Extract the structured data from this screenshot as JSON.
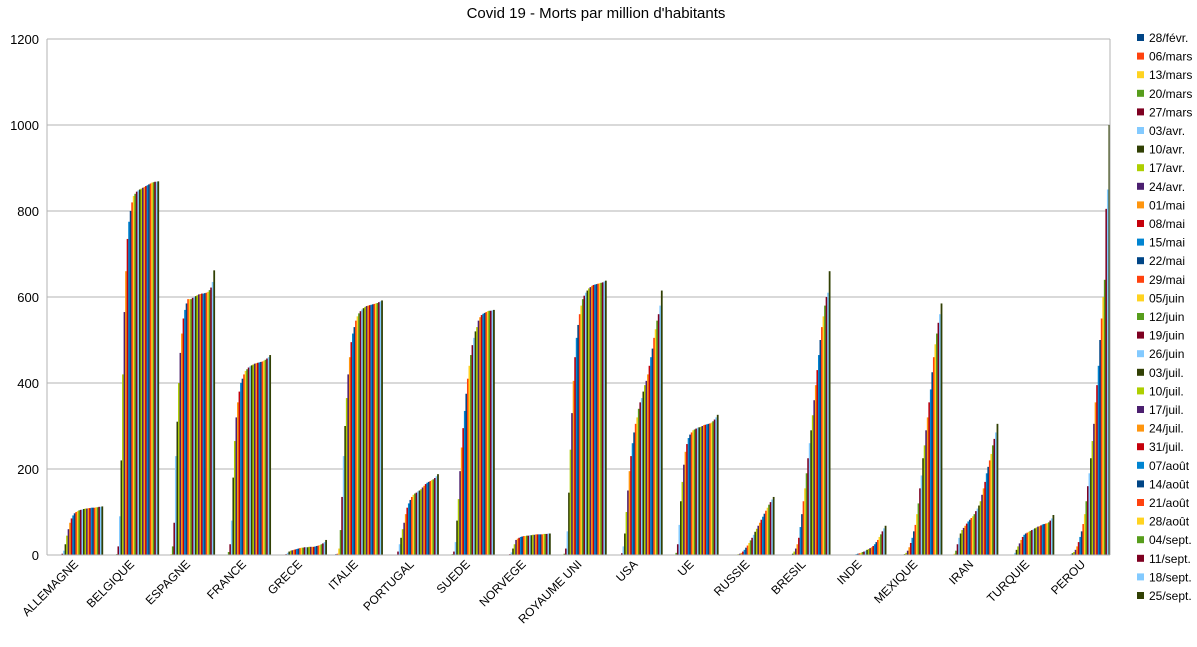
{
  "chart_data": {
    "type": "bar",
    "title": "Covid 19 - Morts par million d'habitants",
    "xlabel": "",
    "ylabel": "",
    "ylim": [
      0,
      1200
    ],
    "yticks": [
      0,
      200,
      400,
      600,
      800,
      1000,
      1200
    ],
    "grid": true,
    "legend_position": "right",
    "categories": [
      "ALLEMAGNE",
      "BELGIQUE",
      "ESPAGNE",
      "FRANCE",
      "GRECE",
      "ITALIE",
      "PORTUGAL",
      "SUEDE",
      "NORVEGE",
      "ROYAUME UNI",
      "USA",
      "UE",
      "RUSSIE",
      "BRESIL",
      "INDE",
      "MEXIQUE",
      "IRAN",
      "TURQUIE",
      "PEROU"
    ],
    "series": [
      {
        "name": "28/févr.",
        "color": "#004586",
        "values": [
          0,
          0,
          0,
          0,
          0,
          2,
          0,
          0,
          0,
          0,
          0,
          0,
          0,
          0,
          0,
          0,
          1,
          0,
          0
        ]
      },
      {
        "name": "06/mars",
        "color": "#ff420e",
        "values": [
          0,
          0,
          0,
          0,
          0,
          3,
          0,
          0,
          0,
          0,
          0,
          0,
          0,
          0,
          0,
          0,
          1,
          0,
          0
        ]
      },
      {
        "name": "13/mars",
        "color": "#ffd320",
        "values": [
          0,
          1,
          2,
          1,
          0,
          15,
          0,
          0,
          0,
          0,
          0,
          0,
          0,
          0,
          0,
          0,
          3,
          0,
          0
        ]
      },
      {
        "name": "20/mars",
        "color": "#579d1c",
        "values": [
          1,
          2,
          20,
          7,
          1,
          58,
          1,
          2,
          1,
          3,
          1,
          5,
          0,
          0,
          0,
          0,
          10,
          0,
          0
        ]
      },
      {
        "name": "27/mars",
        "color": "#7e0021",
        "values": [
          3,
          20,
          75,
          25,
          2,
          135,
          8,
          8,
          2,
          15,
          4,
          25,
          0,
          0,
          0,
          0,
          25,
          1,
          1
        ]
      },
      {
        "name": "03/avr.",
        "color": "#83caff",
        "values": [
          10,
          90,
          230,
          80,
          5,
          230,
          25,
          30,
          6,
          55,
          20,
          70,
          0,
          1,
          0,
          1,
          40,
          5,
          2
        ]
      },
      {
        "name": "10/avr.",
        "color": "#314004",
        "values": [
          25,
          220,
          310,
          180,
          8,
          300,
          40,
          80,
          15,
          145,
          50,
          125,
          0,
          3,
          0,
          2,
          50,
          12,
          4
        ]
      },
      {
        "name": "17/avr.",
        "color": "#aecf00",
        "values": [
          45,
          420,
          400,
          265,
          10,
          365,
          60,
          130,
          25,
          245,
          100,
          170,
          2,
          8,
          0,
          5,
          58,
          20,
          7
        ]
      },
      {
        "name": "24/avr.",
        "color": "#4b1f6f",
        "values": [
          60,
          565,
          470,
          320,
          11,
          420,
          75,
          195,
          35,
          330,
          150,
          210,
          3,
          15,
          0,
          10,
          63,
          27,
          12
        ]
      },
      {
        "name": "01/mai",
        "color": "#ff950e",
        "values": [
          75,
          660,
          515,
          355,
          12,
          460,
          95,
          250,
          38,
          405,
          195,
          240,
          5,
          25,
          1,
          18,
          68,
          35,
          20
        ]
      },
      {
        "name": "08/mai",
        "color": "#c5000b",
        "values": [
          85,
          735,
          550,
          380,
          13,
          495,
          110,
          295,
          40,
          460,
          230,
          258,
          8,
          40,
          1,
          28,
          73,
          42,
          30
        ]
      },
      {
        "name": "15/mai",
        "color": "#0084d1",
        "values": [
          92,
          775,
          570,
          400,
          14,
          515,
          120,
          335,
          42,
          505,
          260,
          272,
          12,
          65,
          2,
          40,
          78,
          47,
          42
        ]
      },
      {
        "name": "22/mai",
        "color": "#004586",
        "values": [
          97,
          800,
          585,
          410,
          15,
          530,
          128,
          375,
          43,
          535,
          285,
          280,
          17,
          95,
          3,
          55,
          82,
          50,
          55
        ]
      },
      {
        "name": "29/mai",
        "color": "#ff420e",
        "values": [
          100,
          820,
          595,
          420,
          16,
          545,
          135,
          410,
          44,
          560,
          305,
          285,
          22,
          125,
          4,
          70,
          86,
          52,
          72
        ]
      },
      {
        "name": "05/juin",
        "color": "#ffd320",
        "values": [
          102,
          835,
          595,
          428,
          17,
          555,
          140,
          440,
          44,
          580,
          320,
          290,
          28,
          155,
          5,
          95,
          90,
          54,
          95
        ]
      },
      {
        "name": "12/juin",
        "color": "#579d1c",
        "values": [
          104,
          840,
          595,
          432,
          17,
          562,
          143,
          465,
          45,
          595,
          340,
          292,
          34,
          190,
          7,
          120,
          95,
          56,
          125
        ]
      },
      {
        "name": "19/juin",
        "color": "#7e0021",
        "values": [
          105,
          845,
          598,
          436,
          18,
          567,
          145,
          488,
          45,
          603,
          355,
          294,
          40,
          225,
          8,
          155,
          102,
          58,
          160
        ]
      },
      {
        "name": "26/juin",
        "color": "#83caff",
        "values": [
          106,
          848,
          600,
          439,
          18,
          571,
          148,
          505,
          46,
          610,
          365,
          296,
          47,
          260,
          10,
          185,
          108,
          60,
          190
        ]
      },
      {
        "name": "03/juil.",
        "color": "#314004",
        "values": [
          107,
          850,
          602,
          441,
          18,
          574,
          150,
          520,
          46,
          615,
          380,
          297,
          54,
          290,
          12,
          225,
          115,
          62,
          225
        ]
      },
      {
        "name": "10/juil.",
        "color": "#aecf00",
        "values": [
          108,
          852,
          604,
          443,
          19,
          577,
          153,
          530,
          47,
          620,
          395,
          298,
          61,
          325,
          14,
          255,
          125,
          64,
          265
        ]
      },
      {
        "name": "17/juil.",
        "color": "#4b1f6f",
        "values": [
          108,
          854,
          606,
          445,
          19,
          579,
          157,
          545,
          47,
          623,
          405,
          300,
          68,
          360,
          16,
          290,
          140,
          66,
          305
        ]
      },
      {
        "name": "24/juil.",
        "color": "#ff950e",
        "values": [
          109,
          856,
          607,
          446,
          19,
          580,
          161,
          553,
          48,
          626,
          420,
          302,
          75,
          395,
          18,
          320,
          155,
          67,
          355
        ]
      },
      {
        "name": "31/juil.",
        "color": "#c5000b",
        "values": [
          109,
          858,
          608,
          447,
          19,
          581,
          165,
          558,
          48,
          628,
          440,
          303,
          82,
          430,
          21,
          355,
          170,
          69,
          395
        ]
      },
      {
        "name": "07/août",
        "color": "#0084d1",
        "values": [
          110,
          860,
          608,
          448,
          20,
          582,
          168,
          561,
          48,
          629,
          460,
          304,
          89,
          465,
          25,
          385,
          190,
          71,
          440
        ]
      },
      {
        "name": "14/août",
        "color": "#004586",
        "values": [
          110,
          862,
          609,
          449,
          21,
          583,
          170,
          563,
          48,
          630,
          480,
          305,
          96,
          500,
          30,
          425,
          205,
          72,
          500
        ]
      },
      {
        "name": "21/août",
        "color": "#ff420e",
        "values": [
          110,
          864,
          610,
          450,
          22,
          584,
          172,
          565,
          48,
          631,
          505,
          306,
          103,
          530,
          35,
          460,
          220,
          73,
          550
        ]
      },
      {
        "name": "28/août",
        "color": "#ffd320",
        "values": [
          111,
          866,
          612,
          452,
          23,
          585,
          174,
          567,
          49,
          632,
          525,
          308,
          110,
          555,
          42,
          490,
          235,
          74,
          600
        ]
      },
      {
        "name": "04/sept.",
        "color": "#579d1c",
        "values": [
          111,
          867,
          616,
          454,
          25,
          586,
          176,
          568,
          49,
          633,
          545,
          311,
          117,
          580,
          48,
          515,
          255,
          76,
          640
        ]
      },
      {
        "name": "11/sept.",
        "color": "#7e0021",
        "values": [
          112,
          868,
          622,
          457,
          27,
          588,
          179,
          568,
          49,
          634,
          560,
          315,
          123,
          600,
          55,
          540,
          270,
          80,
          805
        ]
      },
      {
        "name": "18/sept.",
        "color": "#83caff",
        "values": [
          112,
          868,
          635,
          460,
          30,
          590,
          183,
          569,
          50,
          636,
          580,
          320,
          129,
          610,
          62,
          560,
          285,
          85,
          850
        ]
      },
      {
        "name": "25/sept.",
        "color": "#314004",
        "values": [
          113,
          869,
          662,
          465,
          35,
          592,
          188,
          570,
          50,
          638,
          615,
          326,
          135,
          660,
          68,
          585,
          305,
          93,
          1000
        ]
      }
    ]
  }
}
